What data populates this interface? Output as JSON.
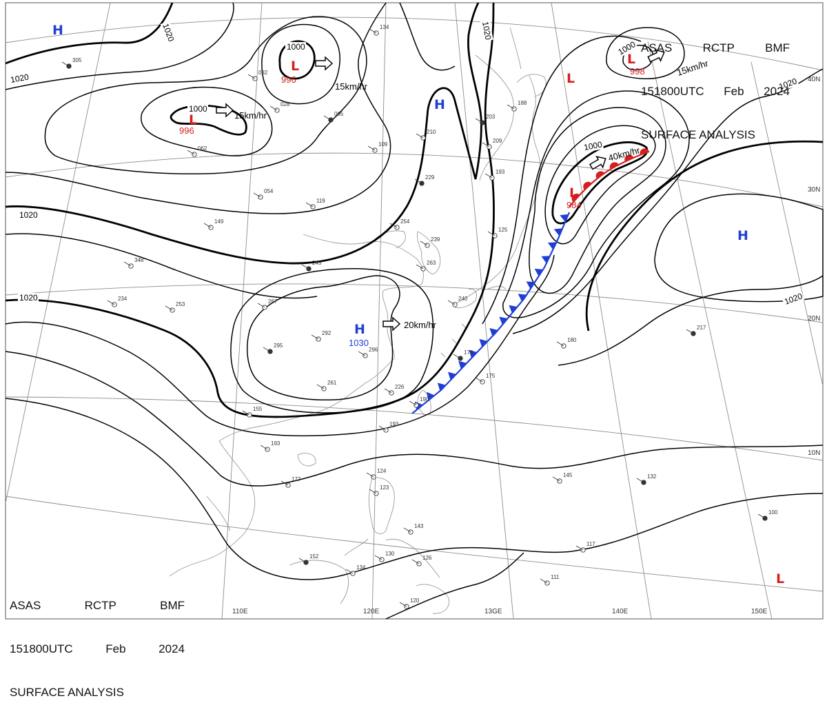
{
  "header_top": {
    "line1": [
      "ASAS",
      "RCTP",
      "BMF"
    ],
    "line2": [
      "151800UTC",
      "Feb",
      "2024"
    ],
    "line3": "SURFACE ANALYSIS"
  },
  "header_bottom": {
    "line1": [
      "ASAS",
      "RCTP",
      "BMF"
    ],
    "line2": [
      "151800UTC",
      "Feb",
      "2024"
    ],
    "line3": "SURFACE ANALYSIS"
  },
  "colors": {
    "high": "#1f3fd4",
    "low": "#d41f1f",
    "cold_front": "#1f3fd4",
    "warm_front": "#d41f1f",
    "isobar": "#000000",
    "coast": "#9a9a9a",
    "grid": "#8c8c8c"
  },
  "lat_labels": [
    "40N",
    "30N",
    "20N",
    "10N"
  ],
  "lon_labels": [
    "110E",
    "120E",
    "13GE",
    "140E",
    "150E"
  ],
  "pressure_centers": [
    {
      "type": "H",
      "letter": "H"
    },
    {
      "type": "H",
      "letter": "H"
    },
    {
      "type": "H",
      "letter": "H",
      "value": "1030"
    },
    {
      "type": "H",
      "letter": "H"
    },
    {
      "type": "L",
      "letter": "L",
      "value": "996"
    },
    {
      "type": "L",
      "letter": "L",
      "value": "996"
    },
    {
      "type": "L",
      "letter": "L",
      "value": "998"
    },
    {
      "type": "L",
      "letter": "L"
    },
    {
      "type": "L",
      "letter": "L",
      "value": "984"
    },
    {
      "type": "L",
      "letter": "L"
    }
  ],
  "isobar_labels": [
    "1020",
    "1020",
    "1020",
    "1020",
    "1020",
    "1020",
    "1000",
    "1000",
    "1000",
    "1000",
    "1020"
  ],
  "motion_labels": [
    "15km/hr",
    "15km/hr",
    "15km/hr",
    "20km/hr",
    "40km/hr"
  ],
  "stations": [
    "305",
    "082",
    "028",
    "062",
    "054",
    "095",
    "134",
    "149",
    "119",
    "109",
    "203",
    "209",
    "210",
    "188",
    "193",
    "229",
    "254",
    "239",
    "263",
    "348",
    "245",
    "234",
    "253",
    "267",
    "292",
    "295",
    "296",
    "261",
    "226",
    "240",
    "178",
    "175",
    "190",
    "193",
    "180",
    "217",
    "155",
    "193",
    "177",
    "145",
    "132",
    "123",
    "143",
    "130",
    "126",
    "152",
    "134",
    "117",
    "111",
    "120",
    "100",
    "124",
    "125"
  ]
}
